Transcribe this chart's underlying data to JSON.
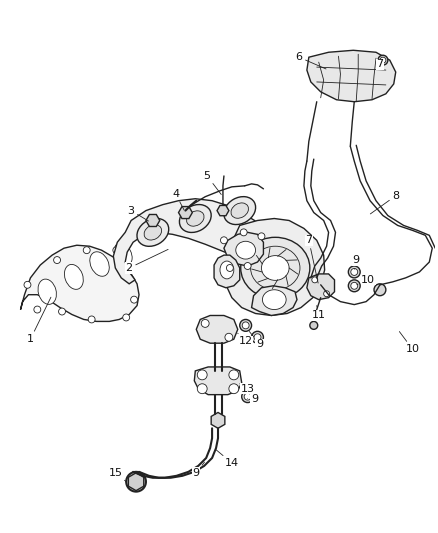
{
  "bg_color": "#ffffff",
  "line_color": "#222222",
  "label_color": "#111111",
  "fig_width": 4.38,
  "fig_height": 5.33,
  "dpi": 100,
  "lw": 1.0,
  "lw_thick": 1.5,
  "lw_thin": 0.6
}
